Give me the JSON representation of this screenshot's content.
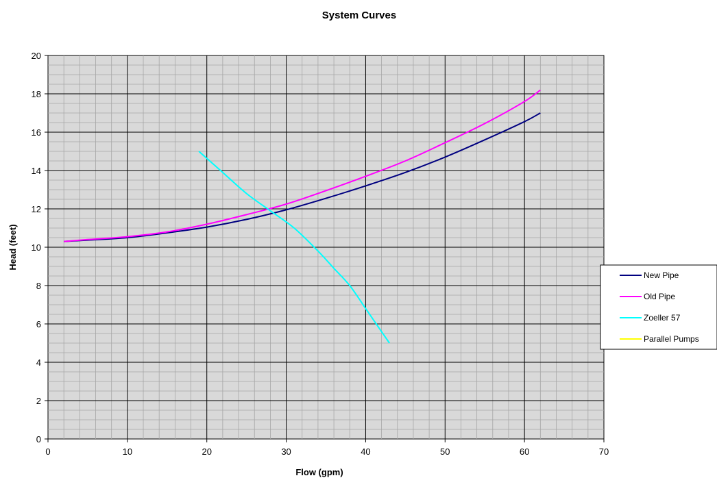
{
  "chart_data": {
    "type": "line",
    "title": "System Curves",
    "xlabel": "Flow (gpm)",
    "ylabel": "Head (feet)",
    "xlim": [
      0,
      70
    ],
    "ylim": [
      0,
      20
    ],
    "xticks": [
      0,
      10,
      20,
      30,
      40,
      50,
      60,
      70
    ],
    "yticks": [
      0,
      2,
      4,
      6,
      8,
      10,
      12,
      14,
      16,
      18,
      20
    ],
    "grid": true,
    "legend_position": "right",
    "plot_background": "#d9d9d9",
    "series": [
      {
        "name": "New Pipe",
        "color": "#000080",
        "x": [
          2,
          5,
          10,
          15,
          20,
          25,
          30,
          35,
          40,
          45,
          50,
          55,
          60,
          62
        ],
        "y": [
          10.3,
          10.37,
          10.5,
          10.75,
          11.05,
          11.45,
          11.95,
          12.55,
          13.2,
          13.9,
          14.7,
          15.6,
          16.55,
          17.0
        ]
      },
      {
        "name": "Old Pipe",
        "color": "#ff00ff",
        "x": [
          2,
          5,
          10,
          15,
          20,
          25,
          30,
          35,
          40,
          45,
          50,
          55,
          60,
          62
        ],
        "y": [
          10.3,
          10.4,
          10.55,
          10.8,
          11.2,
          11.7,
          12.25,
          12.95,
          13.7,
          14.5,
          15.45,
          16.45,
          17.6,
          18.2
        ]
      },
      {
        "name": "Zoeller 57",
        "color": "#00ffff",
        "x": [
          19,
          22,
          25,
          28,
          31,
          34,
          36,
          38,
          40,
          41.5,
          43
        ],
        "y": [
          15.0,
          13.9,
          12.8,
          11.9,
          11.0,
          9.8,
          8.9,
          8.0,
          6.8,
          5.9,
          5.0
        ]
      },
      {
        "name": "Parallel Pumps",
        "color": "#ffff00",
        "x": [],
        "y": []
      }
    ]
  }
}
